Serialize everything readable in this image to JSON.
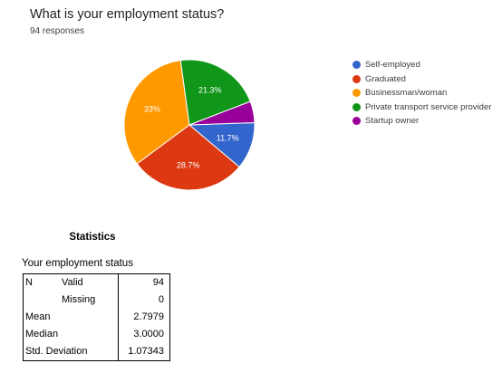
{
  "title": "What is your employment status?",
  "responses": "94 responses",
  "chart_data": {
    "type": "pie",
    "title": "What is your employment status?",
    "slices": [
      {
        "name": "Self-employed",
        "value": 11.7,
        "label": "11.7%",
        "color": "#3366cc"
      },
      {
        "name": "Graduated",
        "value": 28.7,
        "label": "28.7%",
        "color": "#dc3912"
      },
      {
        "name": "Businessman/woman",
        "value": 33.0,
        "label": "33%",
        "color": "#ff9900"
      },
      {
        "name": "Private transport service provider",
        "value": 21.3,
        "label": "21.3%",
        "color": "#109618"
      },
      {
        "name": "Startup owner",
        "value": 5.3,
        "label": "",
        "color": "#990099"
      }
    ],
    "legend_position": "right"
  },
  "legend": [
    {
      "label": "Self-employed",
      "color": "#3366cc"
    },
    {
      "label": "Graduated",
      "color": "#dc3912"
    },
    {
      "label": "Businessman/woman",
      "color": "#ff9900"
    },
    {
      "label": "Private transport service provider",
      "color": "#109618"
    },
    {
      "label": "Startup owner",
      "color": "#990099"
    }
  ],
  "statistics": {
    "title": "Statistics",
    "caption": "Your employment status",
    "rows": [
      {
        "c1": "N",
        "c2": "Valid",
        "value": "94"
      },
      {
        "c1": "",
        "c2": "Missing",
        "value": "0"
      },
      {
        "c1": "Mean",
        "c2": "",
        "value": "2.7979"
      },
      {
        "c1": "Median",
        "c2": "",
        "value": "3.0000"
      },
      {
        "c1": "Std. Deviation",
        "c2": "",
        "value": "1.07343"
      }
    ]
  }
}
